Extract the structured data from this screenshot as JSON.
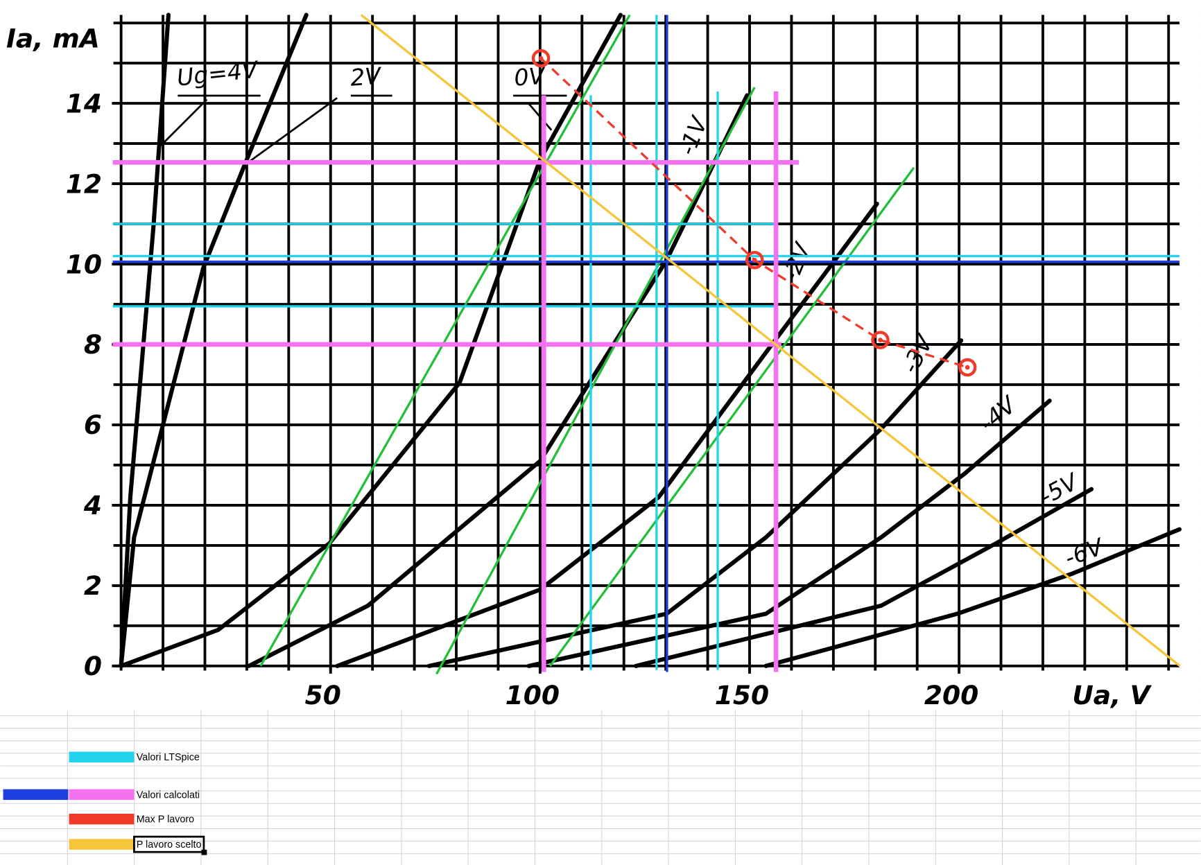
{
  "chart_data": {
    "type": "line",
    "xlabel": "Ua, V",
    "ylabel": "Ia, mA",
    "xlim": [
      0,
      252.6
    ],
    "ylim": [
      0,
      16.2
    ],
    "xticks": [
      50,
      100,
      150,
      200
    ],
    "yticks": [
      0,
      2,
      4,
      6,
      8,
      10,
      12,
      14
    ],
    "xminorticks": [
      0,
      10,
      20,
      30,
      40,
      50,
      60,
      70,
      80,
      90,
      100,
      110,
      120,
      130,
      140,
      150,
      160,
      170,
      180,
      190,
      200,
      210,
      220,
      230,
      240,
      250
    ],
    "yminorticks": [
      0,
      1,
      2,
      3,
      4,
      5,
      6,
      7,
      8,
      9,
      10,
      11,
      12,
      13,
      14,
      15,
      16
    ],
    "grid": true,
    "series": [
      {
        "name": "Ug=4V",
        "color": "#000000",
        "x": [
          0,
          2.2,
          7.7,
          11.3
        ],
        "values": [
          0,
          4.2,
          10.9,
          16.2
        ]
      },
      {
        "name": "2V",
        "color": "#000000",
        "x": [
          0,
          3.1,
          19.6,
          29.6,
          44.2
        ],
        "values": [
          0,
          3.2,
          9.9,
          12.5,
          16.2
        ]
      },
      {
        "name": "0V",
        "color": "#000000",
        "x": [
          0,
          23.2,
          49.7,
          80.8,
          100,
          119.2
        ],
        "values": [
          0,
          0.9,
          3.05,
          7.05,
          12.6,
          16.2
        ]
      },
      {
        "name": "-1V",
        "color": "#000000",
        "x": [
          30.5,
          58.9,
          100,
          130.2,
          149.4
        ],
        "values": [
          0,
          1.5,
          5.1,
          10.1,
          14.2
        ]
      },
      {
        "name": "-2V",
        "color": "#000000",
        "x": [
          51.6,
          100,
          128.3,
          153.9,
          180.4
        ],
        "values": [
          0,
          1.9,
          4.2,
          7.8,
          11.5
        ]
      },
      {
        "name": "-3V",
        "color": "#000000",
        "x": [
          73.5,
          130.2,
          153.9,
          181.4,
          200.5
        ],
        "values": [
          0,
          1.3,
          3.2,
          5.9,
          8.1
        ]
      },
      {
        "name": "-4V",
        "color": "#000000",
        "x": [
          97.3,
          153.9,
          181.4,
          201.5,
          221.6
        ],
        "values": [
          0,
          1.3,
          3.2,
          4.8,
          6.6
        ]
      },
      {
        "name": "-5V",
        "color": "#000000",
        "x": [
          122.9,
          181.4,
          208.8,
          231.6
        ],
        "values": [
          0,
          1.5,
          3.05,
          4.4
        ]
      },
      {
        "name": "-6V",
        "color": "#000000",
        "x": [
          153.9,
          199.6,
          227.1,
          252.6
        ],
        "values": [
          0,
          1.3,
          2.3,
          3.4
        ]
      }
    ],
    "overlays": [
      {
        "color": "#22c03a",
        "lines": [
          {
            "x": [
              33.3,
              121.4
            ],
            "values": [
              0,
              16.2
            ]
          },
          {
            "x": [
              75.3,
              151.2
            ],
            "values": [
              -0.2,
              14.4
            ]
          },
          {
            "x": [
              102.4,
              189.2
            ],
            "values": [
              0,
              12.4
            ]
          }
        ]
      },
      {
        "color": "#22d3ee",
        "lines": [
          {
            "x": [
              -2,
              155.8
            ],
            "values": [
              11,
              11
            ]
          },
          {
            "x": [
              -2,
              252.6
            ],
            "values": [
              10.2,
              10.2
            ]
          },
          {
            "x": [
              -2,
              155.8
            ],
            "values": [
              8.95,
              8.95
            ]
          },
          {
            "x": [
              112.1,
              112.1
            ],
            "values": [
              14.2,
              -0.1
            ]
          },
          {
            "x": [
              127.8,
              127.8
            ],
            "values": [
              16.2,
              -0.1
            ]
          },
          {
            "x": [
              142.4,
              142.4
            ],
            "values": [
              14.3,
              -0.1
            ]
          }
        ]
      },
      {
        "color": "#1f3fe0",
        "lines": [
          {
            "x": [
              -2,
              252.6
            ],
            "values": [
              10.06,
              10.06
            ]
          },
          {
            "x": [
              130.3,
              130.3
            ],
            "values": [
              16.2,
              -0.15
            ]
          }
        ]
      },
      {
        "color": "#f472f0",
        "width": 6,
        "lines": [
          {
            "x": [
              -2,
              161.8
            ],
            "values": [
              12.53,
              12.53
            ]
          },
          {
            "x": [
              -2,
              157.6
            ],
            "values": [
              8.0,
              8.0
            ]
          },
          {
            "x": [
              100.9,
              100.9
            ],
            "values": [
              14.2,
              -0.15
            ]
          },
          {
            "x": [
              156.3,
              156.3
            ],
            "values": [
              14.3,
              -0.15
            ]
          }
        ]
      },
      {
        "color": "#f5c53a",
        "lines": [
          {
            "x": [
              57.3,
              252.7
            ],
            "values": [
              16.2,
              0
            ]
          }
        ]
      },
      {
        "color": "#f03a2a",
        "dashed": true,
        "markers": true,
        "lines": [
          {
            "x": [
              100.2,
              151.2,
              181.2,
              202
            ],
            "values": [
              15.12,
              10.1,
              8.11,
              7.43
            ]
          }
        ]
      }
    ],
    "legend": [
      {
        "label": "Valori LTSpice",
        "colors": [
          "#22d3ee"
        ]
      },
      {
        "label": "Valori calcolati",
        "colors": [
          "#1f3fe0",
          "#f472f0"
        ]
      },
      {
        "label": "Max P lavoro",
        "colors": [
          "#f03a2a"
        ]
      },
      {
        "label": "P lavoro scelto",
        "colors": [
          "#f5c53a"
        ]
      }
    ]
  }
}
